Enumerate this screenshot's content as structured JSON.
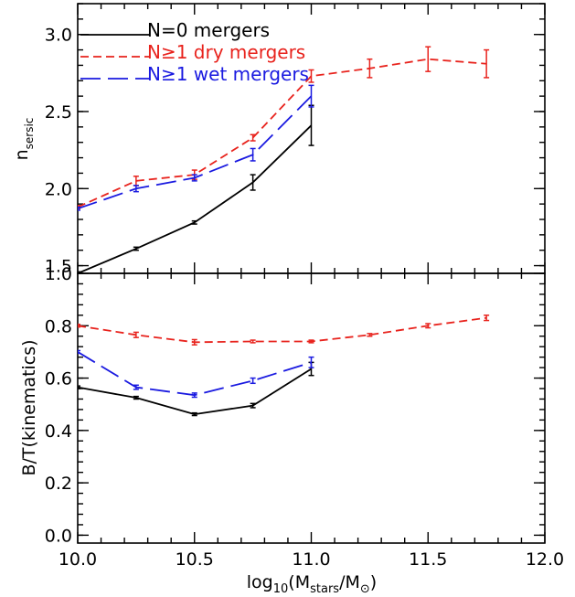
{
  "chart_data": [
    {
      "type": "line",
      "ylabel": "n",
      "ylabel_sub": "sersic",
      "xlim": [
        10.0,
        12.0
      ],
      "ylim": [
        1.45,
        3.2
      ],
      "yticks": [
        1.5,
        2.0,
        2.5,
        3.0
      ],
      "ytick_labels": [
        "1.5",
        "2.0",
        "2.5",
        "3.0"
      ],
      "legend_position": "top-left",
      "series": [
        {
          "name": "N=0 mergers",
          "color": "#000000",
          "dash": "solid",
          "x": [
            10.0,
            10.25,
            10.5,
            10.75,
            11.0
          ],
          "y": [
            1.45,
            1.61,
            1.78,
            2.04,
            2.41
          ],
          "err": [
            0.01,
            0.01,
            0.01,
            0.05,
            0.13
          ]
        },
        {
          "name": "N≥1 dry mergers",
          "color": "#e8231d",
          "dash": "short",
          "x": [
            10.0,
            10.25,
            10.5,
            10.75,
            11.0,
            11.25,
            11.5,
            11.75
          ],
          "y": [
            1.88,
            2.05,
            2.09,
            2.33,
            2.73,
            2.78,
            2.84,
            2.81
          ],
          "err": [
            0.01,
            0.03,
            0.03,
            0.02,
            0.04,
            0.06,
            0.08,
            0.09
          ]
        },
        {
          "name": "N≥1 wet mergers",
          "color": "#1a1ae0",
          "dash": "long",
          "x": [
            10.0,
            10.25,
            10.5,
            10.75,
            11.0
          ],
          "y": [
            1.87,
            2.0,
            2.07,
            2.22,
            2.6
          ],
          "err": [
            0.01,
            0.02,
            0.02,
            0.04,
            0.07
          ]
        }
      ]
    },
    {
      "type": "line",
      "ylabel": "B/T(kinematics)",
      "xlabel_parts": [
        "log",
        "10",
        "(M",
        "stars",
        "/M",
        "⊙",
        ")"
      ],
      "xlim": [
        10.0,
        12.0
      ],
      "ylim": [
        -0.03,
        1.0
      ],
      "yticks": [
        0.0,
        0.2,
        0.4,
        0.6,
        0.8,
        1.0
      ],
      "ytick_labels": [
        "0.0",
        "0.2",
        "0.4",
        "0.6",
        "0.8",
        "1.0"
      ],
      "xticks": [
        10.0,
        10.5,
        11.0,
        11.5,
        12.0
      ],
      "xtick_labels": [
        "10.0",
        "10.5",
        "11.0",
        "11.5",
        "12.0"
      ],
      "series": [
        {
          "name": "N=0 mergers",
          "color": "#000000",
          "dash": "solid",
          "x": [
            10.0,
            10.25,
            10.5,
            10.75,
            11.0
          ],
          "y": [
            0.565,
            0.525,
            0.462,
            0.495,
            0.635
          ],
          "err": [
            0.005,
            0.005,
            0.005,
            0.008,
            0.025
          ]
        },
        {
          "name": "N≥1 dry mergers",
          "color": "#e8231d",
          "dash": "short",
          "x": [
            10.0,
            10.25,
            10.5,
            10.75,
            11.0,
            11.25,
            11.5,
            11.75
          ],
          "y": [
            0.8,
            0.765,
            0.737,
            0.74,
            0.74,
            0.765,
            0.8,
            0.83
          ],
          "err": [
            0.005,
            0.01,
            0.01,
            0.005,
            0.005,
            0.005,
            0.008,
            0.01
          ]
        },
        {
          "name": "N≥1 wet mergers",
          "color": "#1a1ae0",
          "dash": "long",
          "x": [
            10.0,
            10.25,
            10.5,
            10.75,
            11.0
          ],
          "y": [
            0.7,
            0.565,
            0.535,
            0.59,
            0.66
          ],
          "err": [
            0.005,
            0.008,
            0.008,
            0.01,
            0.02
          ]
        }
      ]
    }
  ]
}
